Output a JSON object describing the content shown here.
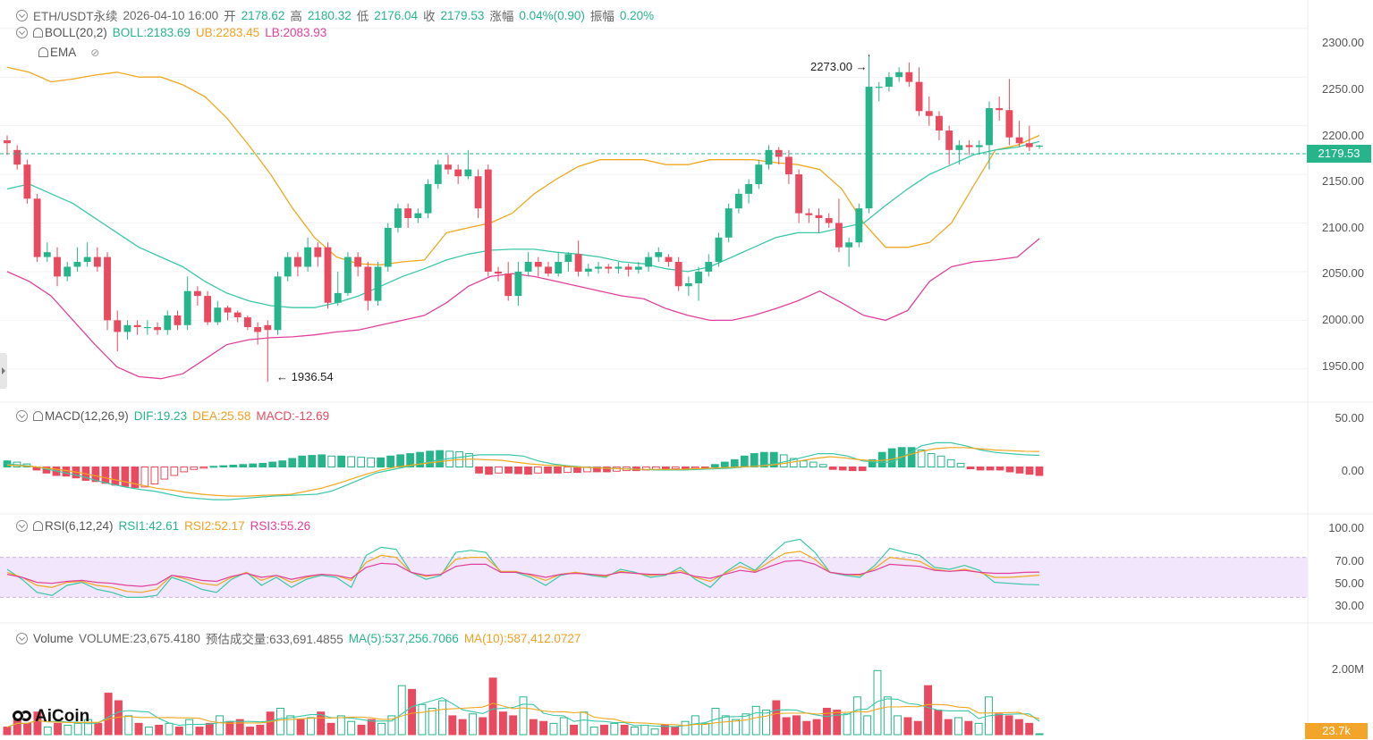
{
  "header": {
    "symbol": "ETH/USDT永续",
    "datetime": "2026-04-10 16:00",
    "open_label": "开",
    "open": "2178.62",
    "high_label": "高",
    "high": "2180.32",
    "low_label": "低",
    "low": "2176.04",
    "close_label": "收",
    "close": "2179.53",
    "change_label": "涨幅",
    "change": "0.04%(0.90)",
    "amplitude_label": "振幅",
    "amplitude": "0.20%"
  },
  "boll": {
    "label": "BOLL(20,2)",
    "mid": "BOLL:2183.69",
    "ub": "UB:2283.45",
    "lb": "LB:2083.93"
  },
  "ema": {
    "label": "EMA"
  },
  "macd": {
    "label": "MACD(12,26,9)",
    "dif": "DIF:19.23",
    "dea": "DEA:25.58",
    "macd": "MACD:-12.69"
  },
  "rsi": {
    "label": "RSI(6,12,24)",
    "rsi1": "RSI1:42.61",
    "rsi2": "RSI2:52.17",
    "rsi3": "RSI3:55.26"
  },
  "volume": {
    "label": "Volume",
    "value": "VOLUME:23,675.4180",
    "est": "预估成交量:633,691.4855",
    "ma5": "MA(5):537,256.7066",
    "ma10": "MA(10):587,412.0727"
  },
  "price_axis": [
    "2300.00",
    "2250.00",
    "2200.00",
    "2150.00",
    "2100.00",
    "2050.00",
    "2000.00",
    "1950.00"
  ],
  "macd_axis": [
    "50.00",
    "0.00"
  ],
  "rsi_axis": [
    "100.00",
    "70.00",
    "50.00",
    "30.00"
  ],
  "vol_axis": [
    "2.00M"
  ],
  "current_price": "2179.53",
  "current_volume": "23.7k",
  "annotations": {
    "high": "2273.00",
    "low": "1936.54"
  },
  "logo": "AiCoin",
  "colors": {
    "up": "#26b58a",
    "down": "#e84a5f",
    "boll_ub": "#f0a820",
    "boll_mid": "#3cc7a8",
    "boll_lb": "#e0409a"
  },
  "chart_data": {
    "type": "candlestick",
    "price_range": [
      1925,
      2320
    ],
    "candles": [
      [
        2185,
        2182,
        2190,
        2170
      ],
      [
        2175,
        2160,
        2180,
        2155
      ],
      [
        2160,
        2125,
        2165,
        2120
      ],
      [
        2125,
        2065,
        2130,
        2060
      ],
      [
        2065,
        2070,
        2080,
        2060
      ],
      [
        2065,
        2045,
        2075,
        2035
      ],
      [
        2045,
        2055,
        2060,
        2040
      ],
      [
        2055,
        2060,
        2075,
        2050
      ],
      [
        2060,
        2065,
        2080,
        2055
      ],
      [
        2065,
        2055,
        2075,
        2050
      ],
      [
        2065,
        2000,
        2070,
        1990
      ],
      [
        2000,
        1988,
        2010,
        1968
      ],
      [
        1988,
        1995,
        2000,
        1980
      ],
      [
        1995,
        1993,
        2000,
        1985
      ],
      [
        1993,
        1993,
        2000,
        1985
      ],
      [
        1993,
        1990,
        1998,
        1985
      ],
      [
        1990,
        2005,
        2010,
        1985
      ],
      [
        2005,
        1995,
        2010,
        1990
      ],
      [
        1995,
        2030,
        2045,
        1990
      ],
      [
        2030,
        2025,
        2035,
        2015
      ],
      [
        2025,
        1998,
        2030,
        1995
      ],
      [
        1998,
        2013,
        2020,
        1995
      ],
      [
        2013,
        2008,
        2015,
        2000
      ],
      [
        2008,
        2003,
        2010,
        1998
      ],
      [
        2003,
        1993,
        2005,
        1990
      ],
      [
        1993,
        1988,
        1998,
        1975
      ],
      [
        1995,
        1990,
        2000,
        1936.54
      ],
      [
        1990,
        2045,
        2050,
        1985
      ],
      [
        2045,
        2065,
        2070,
        2040
      ],
      [
        2065,
        2055,
        2070,
        2045
      ],
      [
        2055,
        2075,
        2085,
        2050
      ],
      [
        2075,
        2065,
        2080,
        2055
      ],
      [
        2075,
        2018,
        2080,
        2012
      ],
      [
        2018,
        2028,
        2050,
        2015
      ],
      [
        2028,
        2065,
        2070,
        2025
      ],
      [
        2065,
        2055,
        2070,
        2045
      ],
      [
        2055,
        2020,
        2060,
        2010
      ],
      [
        2020,
        2055,
        2060,
        2015
      ],
      [
        2055,
        2095,
        2100,
        2050
      ],
      [
        2095,
        2115,
        2120,
        2090
      ],
      [
        2115,
        2105,
        2120,
        2095
      ],
      [
        2105,
        2110,
        2115,
        2100
      ],
      [
        2110,
        2140,
        2145,
        2105
      ],
      [
        2140,
        2160,
        2165,
        2135
      ],
      [
        2160,
        2155,
        2170,
        2150
      ],
      [
        2155,
        2148,
        2160,
        2140
      ],
      [
        2148,
        2155,
        2175,
        2145
      ],
      [
        2148,
        2115,
        2155,
        2105
      ],
      [
        2155,
        2050,
        2160,
        2045
      ],
      [
        2050,
        2048,
        2055,
        2040
      ],
      [
        2048,
        2025,
        2060,
        2020
      ],
      [
        2025,
        2050,
        2060,
        2015
      ],
      [
        2050,
        2060,
        2070,
        2045
      ],
      [
        2060,
        2055,
        2065,
        2045
      ],
      [
        2055,
        2048,
        2060,
        2045
      ],
      [
        2048,
        2060,
        2070,
        2045
      ],
      [
        2060,
        2068,
        2070,
        2050
      ],
      [
        2068,
        2050,
        2082,
        2045
      ],
      [
        2050,
        2053,
        2058,
        2045
      ],
      [
        2053,
        2055,
        2060,
        2048
      ],
      [
        2055,
        2053,
        2058,
        2048
      ],
      [
        2053,
        2055,
        2060,
        2048
      ],
      [
        2055,
        2052,
        2058,
        2045
      ],
      [
        2052,
        2055,
        2060,
        2048
      ],
      [
        2055,
        2065,
        2070,
        2050
      ],
      [
        2065,
        2070,
        2075,
        2060
      ],
      [
        2065,
        2060,
        2068,
        2055
      ],
      [
        2060,
        2035,
        2065,
        2030
      ],
      [
        2035,
        2038,
        2045,
        2025
      ],
      [
        2038,
        2050,
        2055,
        2020
      ],
      [
        2050,
        2060,
        2068,
        2045
      ],
      [
        2060,
        2085,
        2090,
        2055
      ],
      [
        2085,
        2115,
        2120,
        2080
      ],
      [
        2115,
        2130,
        2135,
        2110
      ],
      [
        2130,
        2140,
        2145,
        2120
      ],
      [
        2140,
        2160,
        2165,
        2135
      ],
      [
        2160,
        2175,
        2180,
        2155
      ],
      [
        2175,
        2168,
        2178,
        2160
      ],
      [
        2168,
        2150,
        2175,
        2140
      ],
      [
        2150,
        2110,
        2155,
        2100
      ],
      [
        2110,
        2108,
        2115,
        2100
      ],
      [
        2108,
        2105,
        2115,
        2090
      ],
      [
        2105,
        2100,
        2110,
        2095
      ],
      [
        2100,
        2075,
        2125,
        2070
      ],
      [
        2075,
        2080,
        2085,
        2055
      ],
      [
        2080,
        2115,
        2120,
        2075
      ],
      [
        2115,
        2240,
        2273,
        2110
      ],
      [
        2240,
        2240,
        2245,
        2225
      ],
      [
        2240,
        2250,
        2255,
        2235
      ],
      [
        2250,
        2255,
        2260,
        2245
      ],
      [
        2255,
        2245,
        2265,
        2240
      ],
      [
        2245,
        2215,
        2260,
        2210
      ],
      [
        2215,
        2210,
        2230,
        2200
      ],
      [
        2210,
        2195,
        2215,
        2185
      ],
      [
        2195,
        2175,
        2200,
        2160
      ],
      [
        2175,
        2180,
        2185,
        2160
      ],
      [
        2180,
        2178,
        2185,
        2170
      ],
      [
        2178,
        2180,
        2185,
        2170
      ],
      [
        2180,
        2218,
        2225,
        2155
      ],
      [
        2218,
        2216,
        2230,
        2205
      ],
      [
        2216,
        2188,
        2248,
        2180
      ],
      [
        2188,
        2182,
        2205,
        2178
      ],
      [
        2182,
        2178,
        2200,
        2174
      ],
      [
        2178.62,
        2179.53,
        2180.32,
        2176.04
      ]
    ],
    "boll_ub": [
      2260,
      2255,
      2245,
      2248,
      2252,
      2255,
      2250,
      2250,
      2242,
      2230,
      2208,
      2180,
      2150,
      2115,
      2085,
      2065,
      2058,
      2057,
      2060,
      2062,
      2090,
      2095,
      2100,
      2110,
      2130,
      2145,
      2158,
      2165,
      2165,
      2165,
      2160,
      2160,
      2165,
      2165,
      2165,
      2162,
      2160,
      2155,
      2135,
      2100,
      2075,
      2075,
      2080,
      2100,
      2138,
      2175,
      2180,
      2190
    ],
    "boll_mid": [
      2135,
      2140,
      2130,
      2120,
      2105,
      2090,
      2075,
      2065,
      2055,
      2040,
      2028,
      2020,
      2015,
      2013,
      2013,
      2018,
      2025,
      2035,
      2045,
      2053,
      2062,
      2068,
      2072,
      2073,
      2073,
      2070,
      2068,
      2065,
      2060,
      2058,
      2053,
      2050,
      2055,
      2065,
      2075,
      2085,
      2090,
      2090,
      2095,
      2100,
      2118,
      2135,
      2150,
      2160,
      2170,
      2175,
      2178,
      2183.69
    ],
    "boll_lb": [
      2050,
      2040,
      2025,
      2000,
      1975,
      1952,
      1942,
      1940,
      1945,
      1960,
      1975,
      1980,
      1982,
      1983,
      1985,
      1988,
      1990,
      1995,
      2000,
      2005,
      2018,
      2035,
      2045,
      2048,
      2045,
      2040,
      2035,
      2030,
      2025,
      2022,
      2012,
      2005,
      2000,
      2000,
      2005,
      2012,
      2020,
      2030,
      2018,
      2005,
      2000,
      2010,
      2040,
      2055,
      2060,
      2062,
      2065,
      2083.93
    ],
    "macd_range": [
      -70,
      70
    ],
    "macd_hist": [
      10,
      8,
      5,
      -5,
      -10,
      -14,
      -15,
      -18,
      -22,
      -24,
      -27,
      -30,
      -32,
      -34,
      -33,
      -28,
      -20,
      -14,
      -8,
      -4,
      -2,
      1,
      2,
      3,
      4,
      5,
      6,
      8,
      10,
      14,
      18,
      19,
      20,
      18,
      18,
      17,
      16,
      15,
      15,
      18,
      20,
      22,
      24,
      26,
      27,
      26,
      25,
      22,
      -10,
      -12,
      -10,
      -10,
      -11,
      -12,
      -10,
      -10,
      -10,
      -9,
      -9,
      -8,
      -8,
      -8,
      -7,
      -6,
      -6,
      -5,
      -4,
      -4,
      -3,
      -3,
      -2,
      -2,
      4,
      8,
      12,
      18,
      22,
      24,
      24,
      20,
      14,
      10,
      8,
      4,
      -4,
      -5,
      -6,
      -6,
      12,
      24,
      30,
      32,
      32,
      28,
      22,
      18,
      12,
      6,
      -3,
      -5,
      -5,
      -5,
      -8,
      -10,
      -12,
      -14
    ],
    "macd_dif": [
      5,
      3,
      0,
      -5,
      -10,
      -15,
      -22,
      -28,
      -33,
      -37,
      -40,
      -45,
      -50,
      -52,
      -54,
      -54,
      -52,
      -50,
      -48,
      -47,
      -46,
      -45,
      -40,
      -30,
      -20,
      -10,
      -5,
      0,
      5,
      10,
      14,
      17,
      20,
      20,
      20,
      18,
      10,
      5,
      2,
      0,
      -1,
      -2,
      -3,
      -4,
      -5,
      -5,
      -5,
      -4,
      -3,
      -2,
      0,
      2,
      5,
      10,
      16,
      22,
      22,
      18,
      10,
      8,
      8,
      20,
      35,
      40,
      40,
      35,
      28,
      24,
      22,
      20,
      19.23
    ],
    "macd_dea": [
      3,
      2,
      0,
      -3,
      -6,
      -10,
      -15,
      -20,
      -25,
      -30,
      -35,
      -38,
      -42,
      -45,
      -47,
      -48,
      -48,
      -47,
      -46,
      -45,
      -40,
      -35,
      -28,
      -20,
      -12,
      -5,
      0,
      3,
      6,
      9,
      12,
      13,
      12,
      11,
      8,
      5,
      3,
      2,
      0,
      -1,
      -2,
      -3,
      -4,
      -4,
      -4,
      -4,
      -3,
      -2,
      -1,
      0,
      1,
      3,
      6,
      10,
      14,
      17,
      15,
      12,
      10,
      12,
      18,
      25,
      30,
      32,
      32,
      30,
      28,
      27,
      26,
      25.58
    ],
    "rsi_range": [
      0,
      100
    ],
    "rsi1": [
      58,
      48,
      35,
      32,
      42,
      45,
      38,
      35,
      30,
      30,
      32,
      50,
      45,
      38,
      35,
      48,
      55,
      42,
      50,
      40,
      48,
      52,
      50,
      40,
      72,
      80,
      78,
      55,
      48,
      52,
      75,
      77,
      75,
      55,
      55,
      50,
      42,
      52,
      55,
      52,
      50,
      58,
      55,
      50,
      52,
      60,
      48,
      40,
      55,
      65,
      57,
      72,
      85,
      88,
      75,
      55,
      52,
      50,
      62,
      79,
      75,
      72,
      60,
      58,
      62,
      57,
      45,
      44,
      43,
      42.61
    ],
    "rsi2": [
      55,
      50,
      42,
      40,
      45,
      46,
      42,
      40,
      36,
      35,
      38,
      52,
      48,
      44,
      42,
      50,
      55,
      47,
      52,
      45,
      50,
      53,
      52,
      47,
      65,
      72,
      70,
      55,
      51,
      53,
      68,
      70,
      70,
      56,
      56,
      52,
      47,
      53,
      55,
      53,
      51,
      56,
      54,
      52,
      53,
      57,
      50,
      46,
      54,
      61,
      56,
      66,
      74,
      76,
      68,
      55,
      53,
      52,
      59,
      70,
      68,
      66,
      58,
      56,
      58,
      55,
      50,
      50,
      51,
      52.17
    ],
    "rsi3": [
      53,
      50,
      45,
      44,
      46,
      47,
      45,
      44,
      42,
      41,
      43,
      52,
      50,
      47,
      46,
      51,
      54,
      50,
      52,
      48,
      51,
      53,
      52,
      49,
      60,
      64,
      63,
      55,
      52,
      53,
      61,
      63,
      63,
      55,
      55,
      53,
      50,
      53,
      54,
      53,
      52,
      55,
      54,
      53,
      53,
      55,
      51,
      49,
      53,
      57,
      55,
      61,
      66,
      67,
      63,
      55,
      53,
      53,
      57,
      63,
      62,
      61,
      57,
      56,
      57,
      55,
      54,
      54,
      55,
      55.26
    ],
    "volume_range": [
      0,
      2300000
    ],
    "volumes": [
      200000,
      400000,
      300000,
      600000,
      200000,
      300000,
      250000,
      300000,
      400000,
      300000,
      1100000,
      900000,
      500000,
      300000,
      200000,
      250000,
      300000,
      200000,
      400000,
      200000,
      300000,
      500000,
      350000,
      400000,
      200000,
      250000,
      600000,
      700000,
      500000,
      400000,
      450000,
      600000,
      300000,
      500000,
      350000,
      250000,
      400000,
      300000,
      500000,
      1300000,
      1200000,
      800000,
      700000,
      900000,
      500000,
      400000,
      550000,
      450000,
      1500000,
      600000,
      500000,
      1000000,
      400000,
      350000,
      300000,
      450000,
      250000,
      600000,
      200000,
      250000,
      300000,
      250000,
      200000,
      250000,
      150000,
      250000,
      200000,
      350000,
      500000,
      300000,
      700000,
      500000,
      400000,
      550000,
      750000,
      650000,
      900000,
      450000,
      500000,
      350000,
      400000,
      700000,
      650000,
      550000,
      1000000,
      500000,
      1700000,
      1000000,
      500000,
      450000,
      350000,
      1300000,
      650000,
      400000,
      450000,
      350000,
      300000,
      1000000,
      550000,
      500000,
      400000,
      300000,
      23675
    ]
  }
}
